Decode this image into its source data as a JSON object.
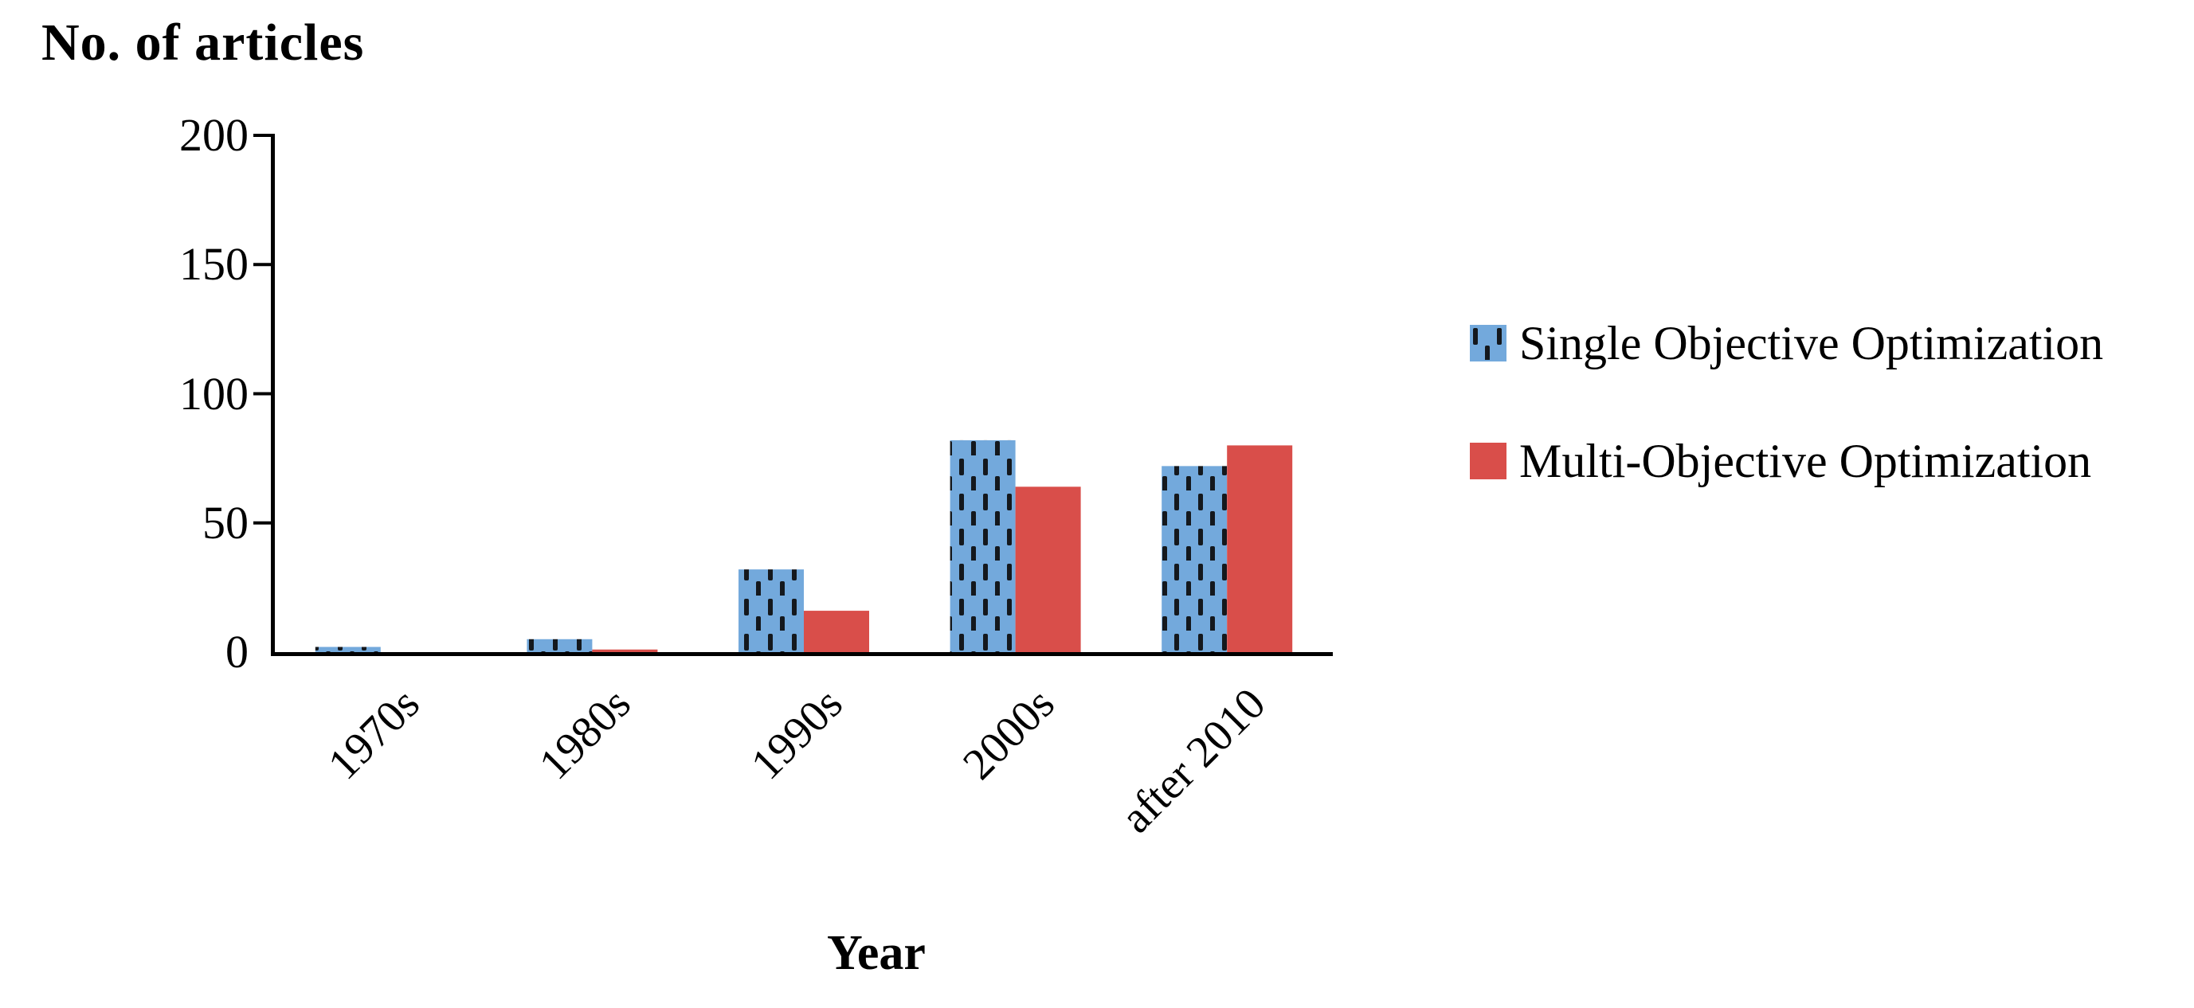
{
  "chart_data": {
    "type": "bar",
    "title": "No. of articles",
    "xlabel": "Year",
    "ylabel": "",
    "categories": [
      "1970s",
      "1980s",
      "1990s",
      "2000s",
      "after 2010"
    ],
    "series": [
      {
        "name": "Single Objective Optimization",
        "color": "#73A9DC",
        "pattern": "vertical-dashes",
        "pattern_color": "#14181d",
        "values": [
          2,
          5,
          32,
          82,
          72
        ]
      },
      {
        "name": "Multi-Objective Optimization",
        "color": "#D94E4A",
        "pattern": "solid",
        "values": [
          0,
          1,
          16,
          64,
          80
        ]
      }
    ],
    "ylim": [
      0,
      200
    ],
    "yticks": [
      0,
      50,
      100,
      150,
      200
    ],
    "grid": false,
    "axis_color": "#000000",
    "legend_position": "right"
  }
}
